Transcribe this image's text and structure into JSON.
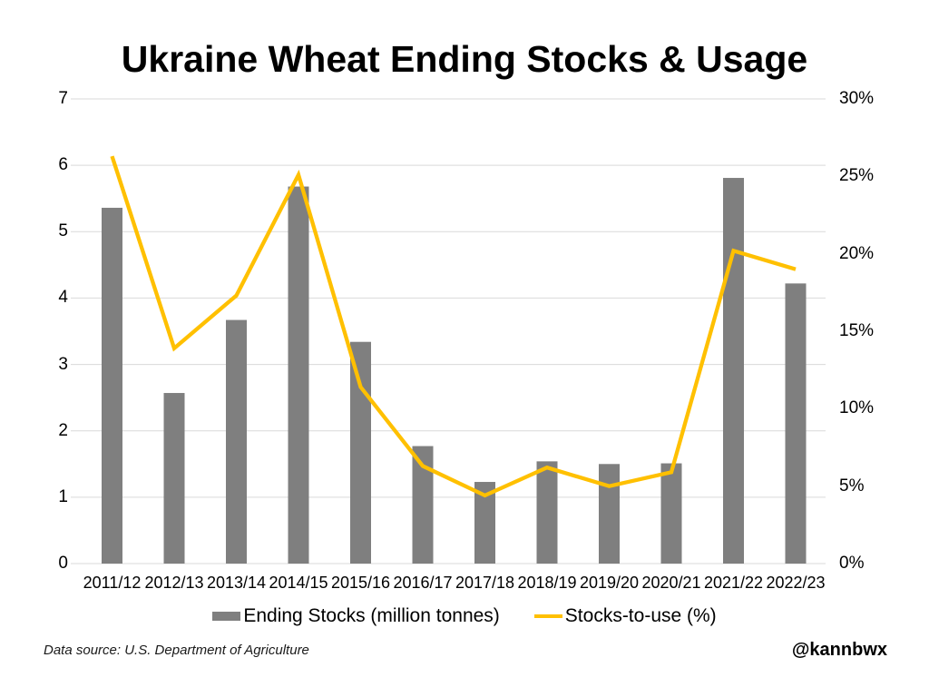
{
  "title": "Ukraine Wheat Ending Stocks & Usage",
  "legend": {
    "items": [
      {
        "label": "Ending Stocks (million tonnes)",
        "swatch": "bar"
      },
      {
        "label": "Stocks-to-use (%)",
        "swatch": "line"
      }
    ]
  },
  "footer": {
    "source_note": "Data source: U.S. Department of Agriculture",
    "handle": "@kannbwx"
  },
  "colors": {
    "bar": "#7F7F7F",
    "line": "#FFC000",
    "grid": "#D9D9D9",
    "text": "#000000"
  },
  "chart_data": {
    "type": "bar+line",
    "title": "Ukraine Wheat Ending Stocks & Usage",
    "categories": [
      "2011/12",
      "2012/13",
      "2013/14",
      "2014/15",
      "2015/16",
      "2016/17",
      "2017/18",
      "2018/19",
      "2019/20",
      "2020/21",
      "2021/22",
      "2022/23"
    ],
    "series": [
      {
        "name": "Ending Stocks (million tonnes)",
        "type": "bar",
        "axis": "left",
        "values": [
          5.36,
          2.57,
          3.67,
          5.68,
          3.34,
          1.77,
          1.23,
          1.54,
          1.5,
          1.51,
          5.81,
          4.22
        ]
      },
      {
        "name": "Stocks-to-use (%)",
        "type": "line",
        "axis": "right",
        "values": [
          26.3,
          13.9,
          17.3,
          25.1,
          11.4,
          6.3,
          4.4,
          6.2,
          5.0,
          5.9,
          20.2,
          19.0
        ]
      }
    ],
    "left_axis": {
      "ticks": [
        "0",
        "1",
        "2",
        "3",
        "4",
        "5",
        "6",
        "7"
      ],
      "tick_values": [
        0,
        1,
        2,
        3,
        4,
        5,
        6,
        7
      ],
      "range": [
        0,
        7
      ]
    },
    "right_axis": {
      "ticks": [
        "0%",
        "5%",
        "10%",
        "15%",
        "20%",
        "25%",
        "30%"
      ],
      "tick_values": [
        0,
        5,
        10,
        15,
        20,
        25,
        30
      ],
      "range": [
        0,
        30
      ]
    },
    "grid": true,
    "legend_position": "bottom"
  }
}
